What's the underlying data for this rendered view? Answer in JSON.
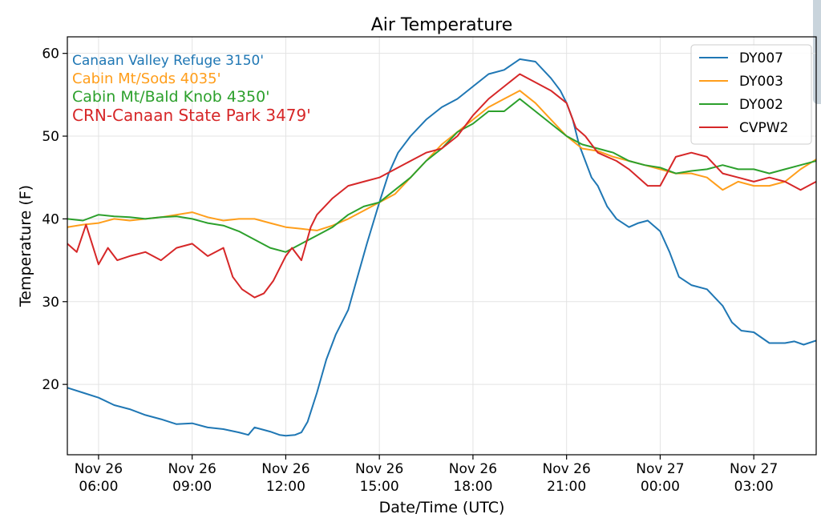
{
  "chart_data": {
    "type": "line",
    "title": "Air Temperature",
    "xlabel": "Date/Time (UTC)",
    "ylabel": "Temperature (F)",
    "x_unit": "hours since Nov 26 00:00 UTC",
    "xlim": [
      5.0,
      29.0
    ],
    "ylim": [
      11.5,
      62
    ],
    "yticks": [
      20,
      30,
      40,
      50,
      60
    ],
    "xticks": [
      {
        "x": 6,
        "line1": "Nov 26",
        "line2": "06:00"
      },
      {
        "x": 9,
        "line1": "Nov 26",
        "line2": "09:00"
      },
      {
        "x": 12,
        "line1": "Nov 26",
        "line2": "12:00"
      },
      {
        "x": 15,
        "line1": "Nov 26",
        "line2": "15:00"
      },
      {
        "x": 18,
        "line1": "Nov 26",
        "line2": "18:00"
      },
      {
        "x": 21,
        "line1": "Nov 26",
        "line2": "21:00"
      },
      {
        "x": 24,
        "line1": "Nov 27",
        "line2": "00:00"
      },
      {
        "x": 27,
        "line1": "Nov 27",
        "line2": "03:00"
      }
    ],
    "grid": true,
    "legend_position": "top-right",
    "annotations": [
      {
        "text": "Canaan Valley Refuge 3150'",
        "color": "#1f77b4"
      },
      {
        "text": "Cabin Mt/Sods 4035'",
        "color": "#ff9e1b"
      },
      {
        "text": "Cabin Mt/Bald Knob 4350'",
        "color": "#2ca02c"
      },
      {
        "text": "CRN-Canaan State Park 3479'",
        "color": "#d62728"
      }
    ],
    "series": [
      {
        "name": "DY007",
        "color": "#1f77b4",
        "x": [
          5.0,
          5.5,
          6.0,
          6.5,
          7.0,
          7.5,
          8.0,
          8.5,
          9.0,
          9.5,
          10.0,
          10.5,
          10.8,
          11.0,
          11.3,
          11.5,
          11.8,
          12.0,
          12.3,
          12.5,
          12.7,
          13.0,
          13.3,
          13.6,
          14.0,
          14.3,
          14.6,
          15.0,
          15.3,
          15.6,
          16.0,
          16.5,
          17.0,
          17.5,
          18.0,
          18.5,
          19.0,
          19.5,
          20.0,
          20.5,
          20.8,
          21.0,
          21.2,
          21.4,
          21.6,
          21.8,
          22.0,
          22.3,
          22.6,
          23.0,
          23.3,
          23.6,
          24.0,
          24.3,
          24.6,
          25.0,
          25.5,
          26.0,
          26.3,
          26.6,
          27.0,
          27.5,
          28.0,
          28.3,
          28.6,
          29.0
        ],
        "values": [
          19.6,
          19.0,
          18.4,
          17.5,
          17.0,
          16.3,
          15.8,
          15.2,
          15.3,
          14.8,
          14.6,
          14.2,
          13.9,
          14.8,
          14.5,
          14.3,
          13.9,
          13.8,
          13.9,
          14.2,
          15.5,
          19.0,
          23.0,
          26.0,
          29.0,
          33.0,
          37.0,
          42.0,
          45.5,
          48.0,
          50.0,
          52.0,
          53.5,
          54.5,
          56.0,
          57.5,
          58.0,
          59.3,
          59.0,
          57.0,
          55.5,
          54.0,
          52.0,
          49.0,
          47.0,
          45.0,
          44.0,
          41.5,
          40.0,
          39.0,
          39.5,
          39.8,
          38.5,
          36.0,
          33.0,
          32.0,
          31.5,
          29.5,
          27.5,
          26.5,
          26.3,
          25.0,
          25.0,
          25.2,
          24.8,
          25.3
        ]
      },
      {
        "name": "DY003",
        "color": "#ff9e1b",
        "x": [
          5.0,
          5.5,
          6.0,
          6.5,
          7.0,
          7.5,
          8.0,
          8.5,
          9.0,
          9.5,
          10.0,
          10.5,
          11.0,
          11.5,
          12.0,
          12.5,
          13.0,
          13.5,
          14.0,
          14.5,
          15.0,
          15.5,
          16.0,
          16.5,
          17.0,
          17.5,
          18.0,
          18.5,
          19.0,
          19.5,
          20.0,
          20.5,
          21.0,
          21.5,
          22.0,
          22.5,
          23.0,
          23.5,
          24.0,
          24.5,
          25.0,
          25.5,
          26.0,
          26.5,
          27.0,
          27.5,
          28.0,
          28.5,
          29.0
        ],
        "values": [
          39.0,
          39.3,
          39.5,
          40.0,
          39.8,
          40.0,
          40.2,
          40.5,
          40.8,
          40.2,
          39.8,
          40.0,
          40.0,
          39.5,
          39.0,
          38.8,
          38.6,
          39.2,
          40.0,
          41.0,
          42.0,
          43.0,
          45.0,
          47.0,
          49.0,
          50.5,
          52.0,
          53.5,
          54.5,
          55.5,
          54.0,
          52.0,
          50.0,
          48.5,
          48.2,
          47.5,
          47.0,
          46.5,
          46.0,
          45.5,
          45.5,
          45.0,
          43.5,
          44.5,
          44.0,
          44.0,
          44.5,
          46.0,
          47.2
        ]
      },
      {
        "name": "DY002",
        "color": "#2ca02c",
        "x": [
          5.0,
          5.5,
          6.0,
          6.5,
          7.0,
          7.5,
          8.0,
          8.5,
          9.0,
          9.5,
          10.0,
          10.5,
          11.0,
          11.5,
          12.0,
          12.5,
          13.0,
          13.5,
          14.0,
          14.5,
          15.0,
          15.5,
          16.0,
          16.5,
          17.0,
          17.5,
          18.0,
          18.5,
          19.0,
          19.5,
          20.0,
          20.5,
          21.0,
          21.5,
          22.0,
          22.5,
          23.0,
          23.5,
          24.0,
          24.5,
          25.0,
          25.5,
          26.0,
          26.5,
          27.0,
          27.5,
          28.0,
          28.5,
          29.0
        ],
        "values": [
          40.0,
          39.8,
          40.5,
          40.3,
          40.2,
          40.0,
          40.2,
          40.3,
          40.0,
          39.5,
          39.2,
          38.5,
          37.5,
          36.5,
          36.0,
          37.0,
          38.0,
          39.0,
          40.5,
          41.5,
          42.0,
          43.5,
          45.0,
          47.0,
          48.5,
          50.5,
          51.5,
          53.0,
          53.0,
          54.5,
          53.0,
          51.5,
          50.0,
          49.0,
          48.5,
          48.0,
          47.0,
          46.5,
          46.2,
          45.5,
          45.8,
          46.0,
          46.5,
          46.0,
          46.0,
          45.5,
          46.0,
          46.5,
          47.0
        ]
      },
      {
        "name": "CVPW2",
        "color": "#d62728",
        "x": [
          5.0,
          5.3,
          5.6,
          6.0,
          6.3,
          6.6,
          7.0,
          7.5,
          8.0,
          8.5,
          9.0,
          9.5,
          10.0,
          10.3,
          10.6,
          11.0,
          11.3,
          11.6,
          12.0,
          12.2,
          12.5,
          12.8,
          13.0,
          13.5,
          14.0,
          14.5,
          15.0,
          15.5,
          16.0,
          16.5,
          17.0,
          17.5,
          18.0,
          18.5,
          19.0,
          19.5,
          20.0,
          20.5,
          21.0,
          21.3,
          21.6,
          22.0,
          22.3,
          22.6,
          23.0,
          23.3,
          23.6,
          24.0,
          24.5,
          25.0,
          25.5,
          26.0,
          26.5,
          27.0,
          27.5,
          28.0,
          28.5,
          29.0
        ],
        "values": [
          37.0,
          36.0,
          39.3,
          34.5,
          36.5,
          35.0,
          35.5,
          36.0,
          35.0,
          36.5,
          37.0,
          35.5,
          36.5,
          33.0,
          31.5,
          30.5,
          31.0,
          32.5,
          35.5,
          36.5,
          35.0,
          39.0,
          40.5,
          42.5,
          44.0,
          44.5,
          45.0,
          46.0,
          47.0,
          48.0,
          48.5,
          50.0,
          52.5,
          54.5,
          56.0,
          57.5,
          56.5,
          55.5,
          54.0,
          51.0,
          50.0,
          48.0,
          47.5,
          47.0,
          46.0,
          45.0,
          44.0,
          44.0,
          47.5,
          48.0,
          47.5,
          45.5,
          45.0,
          44.5,
          45.0,
          44.5,
          43.5,
          44.5
        ]
      }
    ]
  }
}
